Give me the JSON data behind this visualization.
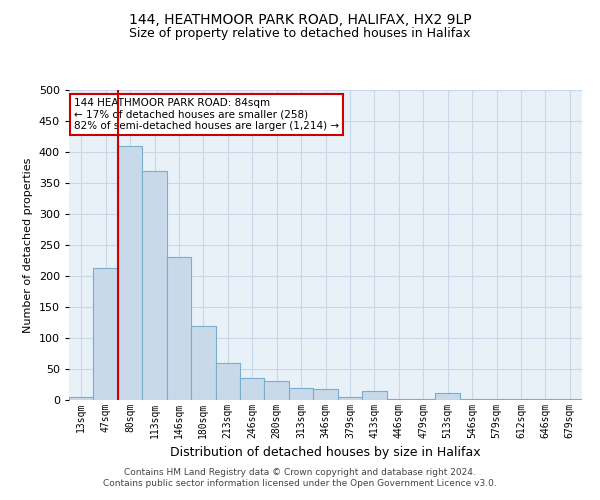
{
  "title1": "144, HEATHMOOR PARK ROAD, HALIFAX, HX2 9LP",
  "title2": "Size of property relative to detached houses in Halifax",
  "xlabel": "Distribution of detached houses by size in Halifax",
  "ylabel": "Number of detached properties",
  "annotation_line1": "144 HEATHMOOR PARK ROAD: 84sqm",
  "annotation_line2": "← 17% of detached houses are smaller (258)",
  "annotation_line3": "82% of semi-detached houses are larger (1,214) →",
  "bar_color": "#c8daea",
  "bar_edge_color": "#7aaed0",
  "red_line_color": "#cc0000",
  "grid_color": "#c8d8e8",
  "background_color": "#e8f0f8",
  "footer_line1": "Contains HM Land Registry data © Crown copyright and database right 2024.",
  "footer_line2": "Contains public sector information licensed under the Open Government Licence v3.0.",
  "categories": [
    "13sqm",
    "47sqm",
    "80sqm",
    "113sqm",
    "146sqm",
    "180sqm",
    "213sqm",
    "246sqm",
    "280sqm",
    "313sqm",
    "346sqm",
    "379sqm",
    "413sqm",
    "446sqm",
    "479sqm",
    "513sqm",
    "546sqm",
    "579sqm",
    "612sqm",
    "646sqm",
    "679sqm"
  ],
  "values": [
    5,
    213,
    410,
    370,
    230,
    120,
    60,
    35,
    30,
    20,
    17,
    5,
    14,
    2,
    2,
    12,
    2,
    2,
    2,
    2,
    2
  ],
  "red_line_bin": 2,
  "ylim": [
    0,
    500
  ],
  "yticks": [
    0,
    50,
    100,
    150,
    200,
    250,
    300,
    350,
    400,
    450,
    500
  ]
}
